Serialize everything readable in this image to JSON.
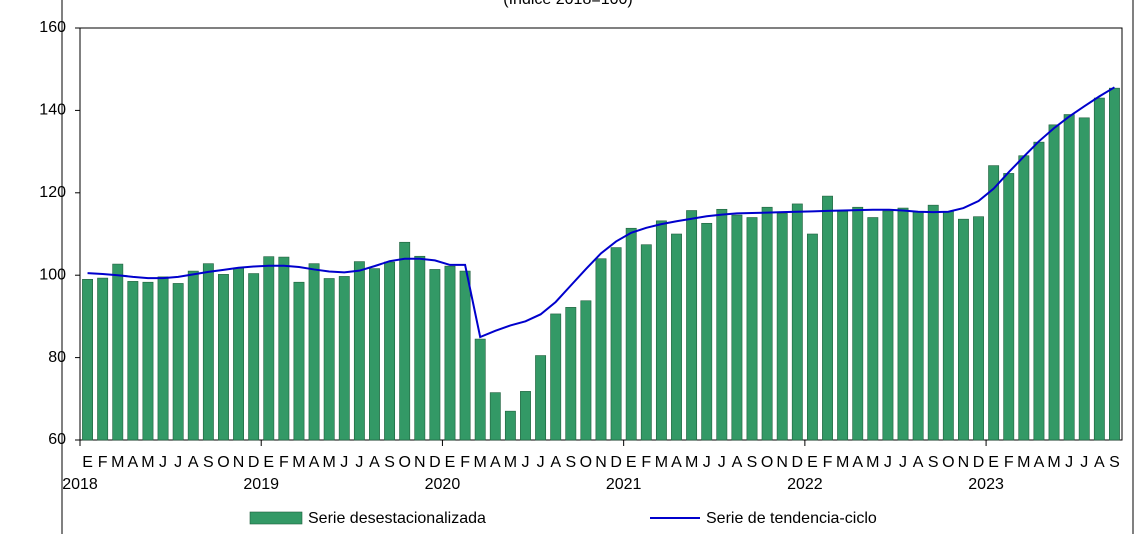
{
  "chart_data": {
    "type": "bar-line",
    "subtitle": "(Índice 2018=100)",
    "categories": [
      "E",
      "F",
      "M",
      "A",
      "M",
      "J",
      "J",
      "A",
      "S",
      "O",
      "N",
      "D",
      "E",
      "F",
      "M",
      "A",
      "M",
      "J",
      "J",
      "A",
      "S",
      "O",
      "N",
      "D",
      "E",
      "F",
      "M",
      "A",
      "M",
      "J",
      "J",
      "A",
      "S",
      "O",
      "N",
      "D",
      "E",
      "F",
      "M",
      "A",
      "M",
      "J",
      "J",
      "A",
      "S",
      "O",
      "N",
      "D",
      "E",
      "F",
      "M",
      "A",
      "M",
      "J",
      "J",
      "A",
      "S",
      "O",
      "N",
      "D",
      "E",
      "F",
      "M",
      "A",
      "M",
      "J",
      "J",
      "A",
      "S"
    ],
    "years": [
      "2018",
      "2019",
      "2020",
      "2021",
      "2022",
      "2023"
    ],
    "series": [
      {
        "name": "Serie desestacionalizada",
        "kind": "bar",
        "color": "#339966",
        "values": [
          99,
          99.3,
          102.7,
          98.5,
          98.3,
          99.6,
          98,
          101,
          102.8,
          100.2,
          101.8,
          100.4,
          104.5,
          104.4,
          98.3,
          102.8,
          99.2,
          99.7,
          103.3,
          101.6,
          103.2,
          108,
          104.6,
          101.4,
          102.2,
          101,
          84.5,
          71.5,
          67,
          71.8,
          80.5,
          90.6,
          92.2,
          93.8,
          104,
          106.7,
          111.4,
          107.4,
          113.2,
          110,
          115.7,
          112.6,
          116,
          114.6,
          114,
          116.5,
          115,
          117.3,
          110,
          119.2,
          115.5,
          116.5,
          114,
          115.6,
          116.3,
          115.3,
          117,
          115.5,
          113.6,
          114.2,
          126.6,
          124.7,
          129,
          132.3,
          136.5,
          139,
          138.2,
          143,
          145.4
        ]
      },
      {
        "name": "Serie de tendencia-ciclo",
        "kind": "line",
        "color": "#0000cc",
        "values": [
          100.5,
          100.3,
          100,
          99.6,
          99.3,
          99.3,
          99.6,
          100.2,
          100.8,
          101.3,
          101.8,
          102.1,
          102.3,
          102.3,
          102,
          101.4,
          100.9,
          100.7,
          101.1,
          102.2,
          103.4,
          104,
          104,
          103.6,
          102.5,
          102.5,
          85,
          86.5,
          87.8,
          88.8,
          90.5,
          93.5,
          97.5,
          101.5,
          105.3,
          108.2,
          110.3,
          111.5,
          112.4,
          113.1,
          113.7,
          114.3,
          114.7,
          115,
          115.1,
          115.2,
          115.3,
          115.4,
          115.5,
          115.6,
          115.7,
          115.8,
          115.9,
          115.9,
          115.7,
          115.4,
          115.3,
          115.4,
          116.3,
          118,
          121,
          125,
          128.8,
          132.5,
          135.7,
          138.5,
          141,
          143.4,
          145.6
        ]
      }
    ],
    "ylim": [
      60,
      160
    ],
    "yticks": [
      60,
      80,
      100,
      120,
      140,
      160
    ]
  }
}
